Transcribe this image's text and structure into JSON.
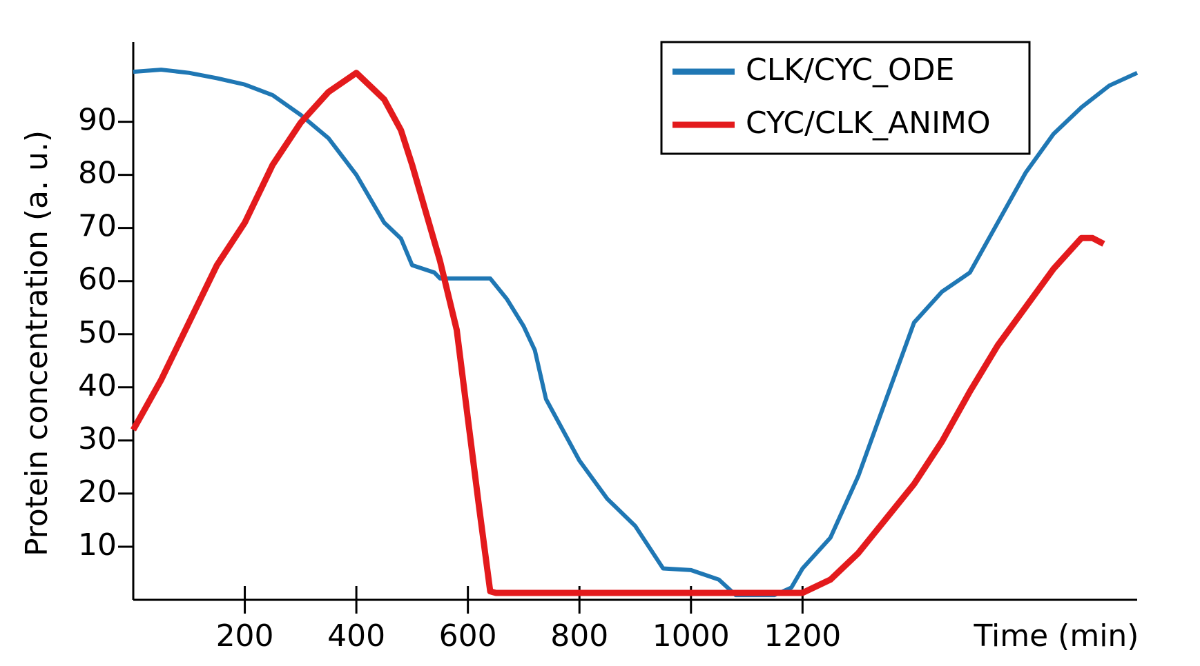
{
  "chart_data": {
    "type": "line",
    "x_label": "Time (min)",
    "y_label": "Protein concentration (a. u.)",
    "xlim": [
      0,
      1800
    ],
    "ylim": [
      0,
      105
    ],
    "xticks": [
      200,
      400,
      600,
      800,
      1000,
      1200
    ],
    "yticks": [
      10,
      20,
      30,
      40,
      50,
      60,
      70,
      80,
      90
    ],
    "legend": "upper right",
    "series": [
      {
        "name": "CLK/CYC_ODE",
        "color": "#1f77b4",
        "x": [
          0,
          50,
          100,
          150,
          200,
          250,
          300,
          350,
          400,
          450,
          480,
          500,
          540,
          550,
          640,
          670,
          700,
          720,
          740,
          800,
          850,
          900,
          950,
          1000,
          1050,
          1080,
          1150,
          1180,
          1200,
          1250,
          1300,
          1350,
          1400,
          1450,
          1500,
          1550,
          1600,
          1650,
          1700,
          1750,
          1800
        ],
        "values": [
          99.4,
          99.8,
          99.2,
          98.2,
          97,
          95,
          91.3,
          86.9,
          80,
          71,
          68,
          63,
          61.6,
          60.5,
          60.5,
          56.6,
          51.5,
          47,
          37.8,
          26.2,
          19,
          13.9,
          5.9,
          5.6,
          3.8,
          0.9,
          0.9,
          2.3,
          5.9,
          11.7,
          23.3,
          37.8,
          52.2,
          58,
          61.6,
          71,
          80.4,
          87.7,
          92.7,
          96.8,
          99.2
        ]
      },
      {
        "name": "CYC/CLK_ANIMO",
        "color": "#e31a1c",
        "x": [
          0,
          50,
          100,
          150,
          200,
          250,
          300,
          350,
          400,
          450,
          480,
          500,
          550,
          580,
          600,
          620,
          640,
          650,
          800,
          1000,
          1200,
          1250,
          1300,
          1350,
          1400,
          1450,
          1500,
          1550,
          1600,
          1650,
          1700,
          1720,
          1740
        ],
        "values": [
          32,
          41.4,
          52.2,
          63,
          71,
          81.9,
          89.8,
          95.6,
          99.2,
          94.2,
          88.4,
          81.9,
          63.8,
          50.8,
          34.1,
          17.5,
          1.6,
          1.3,
          1.3,
          1.3,
          1.3,
          3.8,
          8.8,
          15.3,
          21.8,
          29.8,
          39.2,
          47.9,
          55.1,
          62.3,
          68.1,
          68.1,
          67
        ]
      }
    ]
  }
}
